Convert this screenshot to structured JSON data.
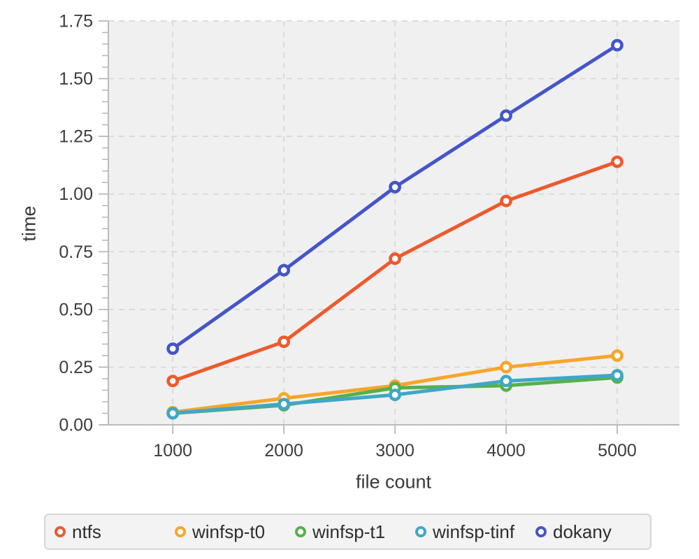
{
  "chart_data": {
    "type": "line",
    "title": "",
    "xlabel": "file count",
    "ylabel": "time",
    "x": [
      1000,
      2000,
      3000,
      4000,
      5000
    ],
    "x_tick_labels": [
      "1000",
      "2000",
      "3000",
      "4000",
      "5000"
    ],
    "y_ticks": [
      0,
      0.25,
      0.5,
      0.75,
      1.0,
      1.25,
      1.5,
      1.75
    ],
    "y_tick_labels": [
      "0.00",
      "0.25",
      "0.50",
      "0.75",
      "1.00",
      "1.25",
      "1.50",
      "1.75"
    ],
    "y_minor_tick_step": 0.05,
    "xlim": [
      420,
      5560
    ],
    "ylim": [
      0,
      1.75
    ],
    "grid": "dashed major gridlines, both axes",
    "legend_position": "bottom",
    "series": [
      {
        "name": "ntfs",
        "color": "#ed5a2d",
        "values": [
          0.19,
          0.36,
          0.72,
          0.97,
          1.14
        ]
      },
      {
        "name": "winfsp-t0",
        "color": "#f7a629",
        "values": [
          0.055,
          0.115,
          0.17,
          0.25,
          0.3
        ]
      },
      {
        "name": "winfsp-t1",
        "color": "#57b04a",
        "values": [
          0.05,
          0.085,
          0.16,
          0.17,
          0.205
        ]
      },
      {
        "name": "winfsp-tinf",
        "color": "#3fa7c8",
        "values": [
          0.05,
          0.09,
          0.13,
          0.19,
          0.215
        ]
      },
      {
        "name": "dokany",
        "color": "#4456c7",
        "values": [
          0.33,
          0.67,
          1.03,
          1.34,
          1.645
        ]
      }
    ],
    "style_colors": {
      "plot_background": "#f0f0f1",
      "figure_background": "#ffffff",
      "gridline": "#d8d8d8",
      "spine_and_ticks": "#b5b5b5",
      "tick_text": "#3d3d3d",
      "legend_background": "#f3f3f3",
      "legend_border": "#d6d6d6"
    }
  }
}
